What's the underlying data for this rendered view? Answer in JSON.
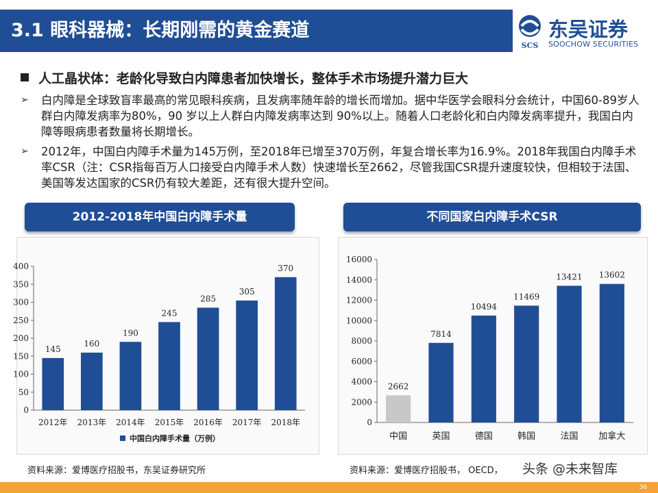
{
  "slide": {
    "title": "3.1 眼科器械：长期刚需的黄金赛道",
    "logo_cn": "东吴证券",
    "logo_en": "SOOCHOW SECURITIES",
    "logo_mark": "SCS",
    "section_heading": "人工晶状体：老龄化导致白内障患者加快增长，整体手术市场提升潜力巨大",
    "bullets": [
      "白内障是全球致盲率最高的常见眼科疾病，且发病率随年龄的增长而增加。据中华医学会眼科分会统计，中国60-89岁人群白内障发病率为80%，90 岁以上人群白内障发病率达到 90%以上。随着人口老龄化和白内障发病率提升，我国白内障等眼病患者数量将长期增长。",
      "2012年，中国白内障手术量为145万例，至2018年已增至370万例，年复合增长率为16.9%。2018年我国白内障手术率CSR（注：CSR指每百万人口接受白内障手术人数）快速增长至2662，尽管我国CSR提升速度较快，但相较于法国、美国等发达国家的CSR仍有较大差距，还有很大提升空间。"
    ],
    "bullet_marker": "➢",
    "left_source": "资料来源：爱博医疗招股书，东吴证券研究所",
    "right_source": "资料来源：爱博医疗招股书， OECD，",
    "watermark": "头条 @未来智库",
    "page_number": "36",
    "colors": {
      "primary": "#1f4e96",
      "footer": "#f2a33a",
      "bar_china": "#c8c8c8"
    }
  },
  "chart_data": [
    {
      "type": "bar",
      "title": "2012-2018年中国白内障手术量",
      "categories": [
        "2012年",
        "2013年",
        "2014年",
        "2015年",
        "2016年",
        "2017年",
        "2018年"
      ],
      "series": [
        {
          "name": "中国白内障手术量（万例）",
          "values": [
            145,
            160,
            190,
            245,
            285,
            305,
            370
          ]
        }
      ],
      "ylim": [
        0,
        400
      ],
      "yticks": [
        0,
        50,
        100,
        150,
        200,
        250,
        300,
        350,
        400
      ],
      "legend": "bottom"
    },
    {
      "type": "bar",
      "title": "不同国家白内障手术CSR",
      "categories": [
        "中国",
        "英国",
        "德国",
        "韩国",
        "法国",
        "加拿大"
      ],
      "series": [
        {
          "values": [
            2662,
            7814,
            10494,
            11469,
            13421,
            13602
          ]
        }
      ],
      "ylim": [
        0,
        16000
      ],
      "yticks": [
        0,
        2000,
        4000,
        6000,
        8000,
        10000,
        12000,
        14000,
        16000
      ],
      "highlight_index": 0
    }
  ]
}
